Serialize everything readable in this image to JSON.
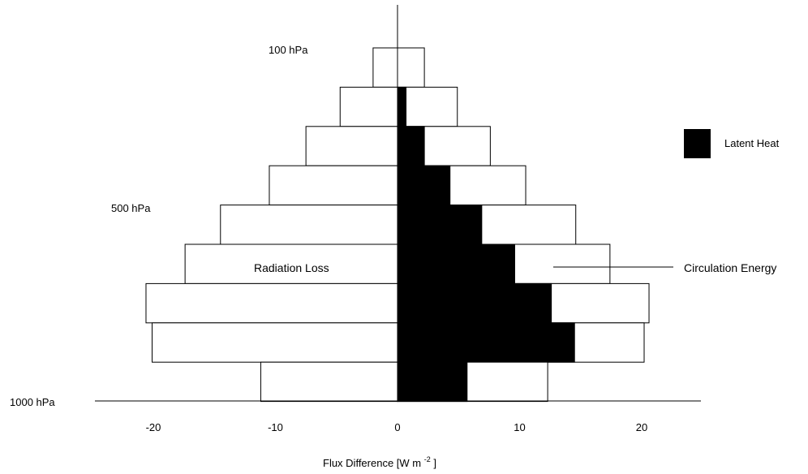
{
  "chart_data": {
    "type": "bar",
    "xlabel_main": "Flux Difference [W m",
    "xlabel_exp": "-2",
    "xlabel_close": "]",
    "xlim": [
      -25,
      25
    ],
    "x_ticks": [
      -20,
      -10,
      0,
      10,
      20
    ],
    "level_labels": {
      "top": "100 hPa",
      "mid": "500 hPa",
      "bottom": "1000 hPa"
    },
    "annotations": {
      "radiation": "Radiation Loss",
      "circulation": "Circulation Energy"
    },
    "legend": {
      "label": "Latent Heat",
      "color": "#000000"
    },
    "series": [
      {
        "name": "Radiation Loss",
        "values": [
          -2.0,
          -4.7,
          -7.5,
          -10.5,
          -14.5,
          -17.4,
          -20.6,
          -20.1,
          -11.2
        ]
      },
      {
        "name": "Latent Heat",
        "values": [
          0.0,
          0.7,
          2.2,
          4.3,
          6.9,
          9.6,
          12.6,
          14.5,
          5.7
        ]
      },
      {
        "name": "Circulation Energy",
        "values": [
          2.2,
          4.9,
          7.6,
          10.5,
          14.6,
          17.4,
          20.6,
          20.2,
          12.3
        ]
      }
    ]
  }
}
